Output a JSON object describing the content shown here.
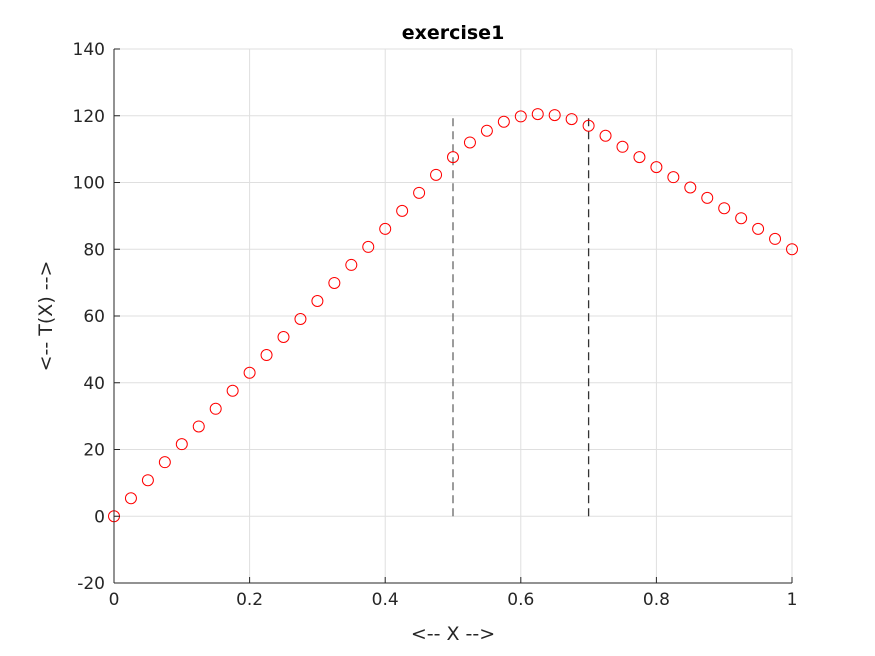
{
  "chart_data": {
    "type": "scatter",
    "title": "exercise1",
    "xlabel": "<-- X -->",
    "ylabel": "<-- T(X) -->",
    "xlim": [
      0,
      1
    ],
    "ylim": [
      -20,
      140
    ],
    "xticks": [
      0,
      0.2,
      0.4,
      0.6,
      0.8,
      1
    ],
    "xtick_labels": [
      "0",
      "0.2",
      "0.4",
      "0.6",
      "0.8",
      "1"
    ],
    "yticks": [
      -20,
      0,
      20,
      40,
      60,
      80,
      100,
      120,
      140
    ],
    "ytick_labels": [
      "-20",
      "0",
      "20",
      "40",
      "60",
      "80",
      "100",
      "120",
      "140"
    ],
    "grid": true,
    "marker_color": "#ff0000",
    "marker": "circle-open",
    "series": [
      {
        "x": [
          0,
          0.025,
          0.05,
          0.075,
          0.1,
          0.125,
          0.15,
          0.175,
          0.2,
          0.225,
          0.25,
          0.275,
          0.3,
          0.325,
          0.35,
          0.375,
          0.4,
          0.425,
          0.45,
          0.475,
          0.5,
          0.525,
          0.55,
          0.575,
          0.6,
          0.625,
          0.65,
          0.675,
          0.7,
          0.725,
          0.75,
          0.775,
          0.8,
          0.825,
          0.85,
          0.875,
          0.9,
          0.925,
          0.95,
          0.975,
          1
        ],
        "y": [
          0,
          5.4,
          10.8,
          16.2,
          21.6,
          26.9,
          32.2,
          37.6,
          43.0,
          48.3,
          53.7,
          59.1,
          64.5,
          69.9,
          75.3,
          80.7,
          86.1,
          91.5,
          96.9,
          102.3,
          107.6,
          112.0,
          115.5,
          118.2,
          119.8,
          120.5,
          120.2,
          119.0,
          117.0,
          114.0,
          110.7,
          107.6,
          104.6,
          101.6,
          98.5,
          95.4,
          92.3,
          89.3,
          86.1,
          83.1,
          80.0
        ]
      }
    ],
    "reference_lines": [
      {
        "x": 0.5,
        "y": [
          0,
          120
        ],
        "style": "dashed",
        "color": "#666666"
      },
      {
        "x": 0.7,
        "y": [
          0,
          120
        ],
        "style": "dashed",
        "color": "#333333"
      }
    ]
  }
}
